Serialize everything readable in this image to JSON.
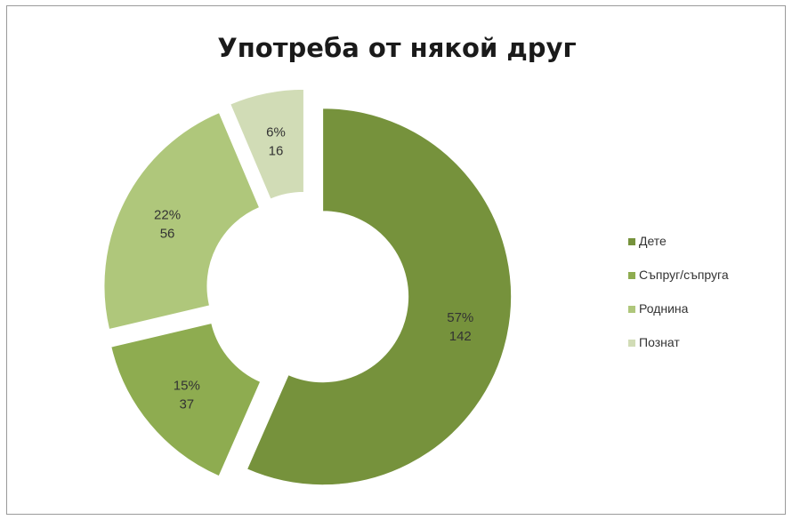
{
  "chart_data": {
    "type": "pie",
    "title": "Употреба от някой друг",
    "categories": [
      "Дете",
      "Съпруг/съпруга",
      "Роднина",
      "Познат"
    ],
    "values": [
      142,
      37,
      56,
      16
    ],
    "percent_labels": [
      "57%",
      "15%",
      "22%",
      "6%"
    ],
    "colors": [
      "#76923c",
      "#8eac50",
      "#afc77b",
      "#d1dcb6"
    ],
    "legend_position": "right"
  }
}
